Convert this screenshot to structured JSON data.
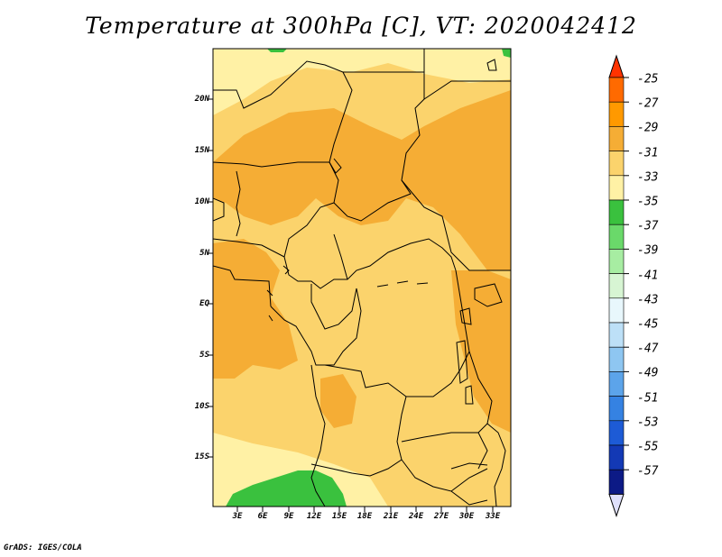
{
  "title": "Temperature at 300hPa [C], VT: 2020042412",
  "credit": "GrADS: IGES/COLA",
  "map": {
    "y_ticks": [
      "20N",
      "15N",
      "10N",
      "5N",
      "EQ",
      "5S",
      "10S",
      "15S"
    ],
    "x_ticks": [
      "3E",
      "6E",
      "9E",
      "12E",
      "15E",
      "18E",
      "21E",
      "24E",
      "27E",
      "30E",
      "33E"
    ]
  },
  "colorbar": {
    "labels": [
      "-25",
      "-27",
      "-29",
      "-31",
      "-33",
      "-35",
      "-37",
      "-39",
      "-41",
      "-43",
      "-45",
      "-47",
      "-49",
      "-51",
      "-53",
      "-55",
      "-57"
    ],
    "colors": [
      "#ff3300",
      "#ff6a00",
      "#ff9900",
      "#f5ad35",
      "#fbd36c",
      "#fff1a5",
      "#3ac13e",
      "#6ad96a",
      "#a7eda2",
      "#d7f5d3",
      "#e8f7fc",
      "#bde0f7",
      "#8ec6f1",
      "#5ca4ea",
      "#3582e2",
      "#1d5bd6",
      "#1339b5",
      "#0c1a86",
      "#dfe0fb"
    ],
    "top_arrow_color": "#ff3300",
    "bottom_arrow_color": "#dfe0fb"
  },
  "colors": {
    "cat_33": "#fbd36c",
    "cat_31": "#f5ad35",
    "cat_35": "#fff1a5",
    "cat_37": "#3ac13e",
    "border": "#000000"
  }
}
